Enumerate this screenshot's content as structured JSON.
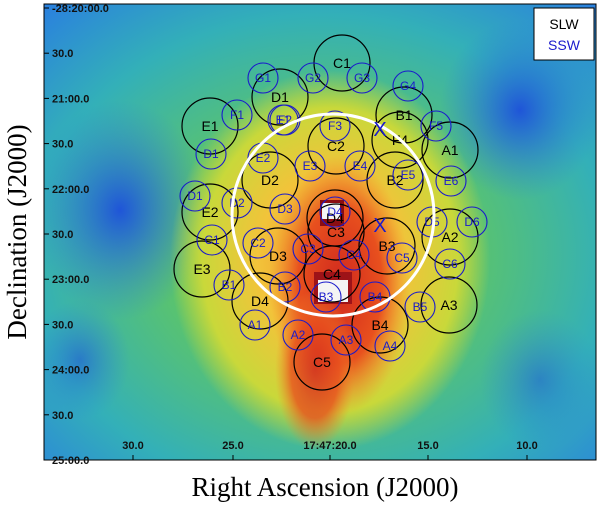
{
  "axes": {
    "xlabel": "Right Ascension (J2000)",
    "ylabel": "Declination (J2000)",
    "x_ticks": [
      "30.0",
      "25.0",
      "17:47:20.0",
      "15.0",
      "10.0"
    ],
    "y_ticks": [
      "-28:20:00.0",
      "30.0",
      "21:00.0",
      "30.0",
      "22:00.0",
      "30.0",
      "23:00.0",
      "30.0",
      "24:00.0",
      "30.0",
      "25:00.0"
    ]
  },
  "legend": {
    "slw": "SLW",
    "ssw": "SSW",
    "slw_color": "#000000",
    "ssw_color": "#1a1acc"
  },
  "colormap": {
    "low": "#1f5fd6",
    "mid": "#3cc4a8",
    "high": "#f2e23a",
    "peak": "#b0141a"
  },
  "slw_detectors": [
    "C1",
    "D1",
    "B1",
    "E1",
    "C2",
    "F4",
    "A1",
    "D2",
    "B2",
    "E2",
    "D4",
    "D3",
    "C3",
    "A2",
    "B3",
    "E3",
    "C4",
    "D4",
    "A3",
    "B4",
    "C5"
  ],
  "ssw_detectors": [
    "G1",
    "G2",
    "G3",
    "G4",
    "E1",
    "F1",
    "F2",
    "F3",
    "F5",
    "D1",
    "E2",
    "E3",
    "E4",
    "E5",
    "E6",
    "D1",
    "D2",
    "D3",
    "D4",
    "D5",
    "D6",
    "C1",
    "C2",
    "C3",
    "C4",
    "C5",
    "C6",
    "B1",
    "B2",
    "B3",
    "B4",
    "B5",
    "A1",
    "A2",
    "A3",
    "A4"
  ],
  "markers": {
    "cross_symbol": "X"
  }
}
